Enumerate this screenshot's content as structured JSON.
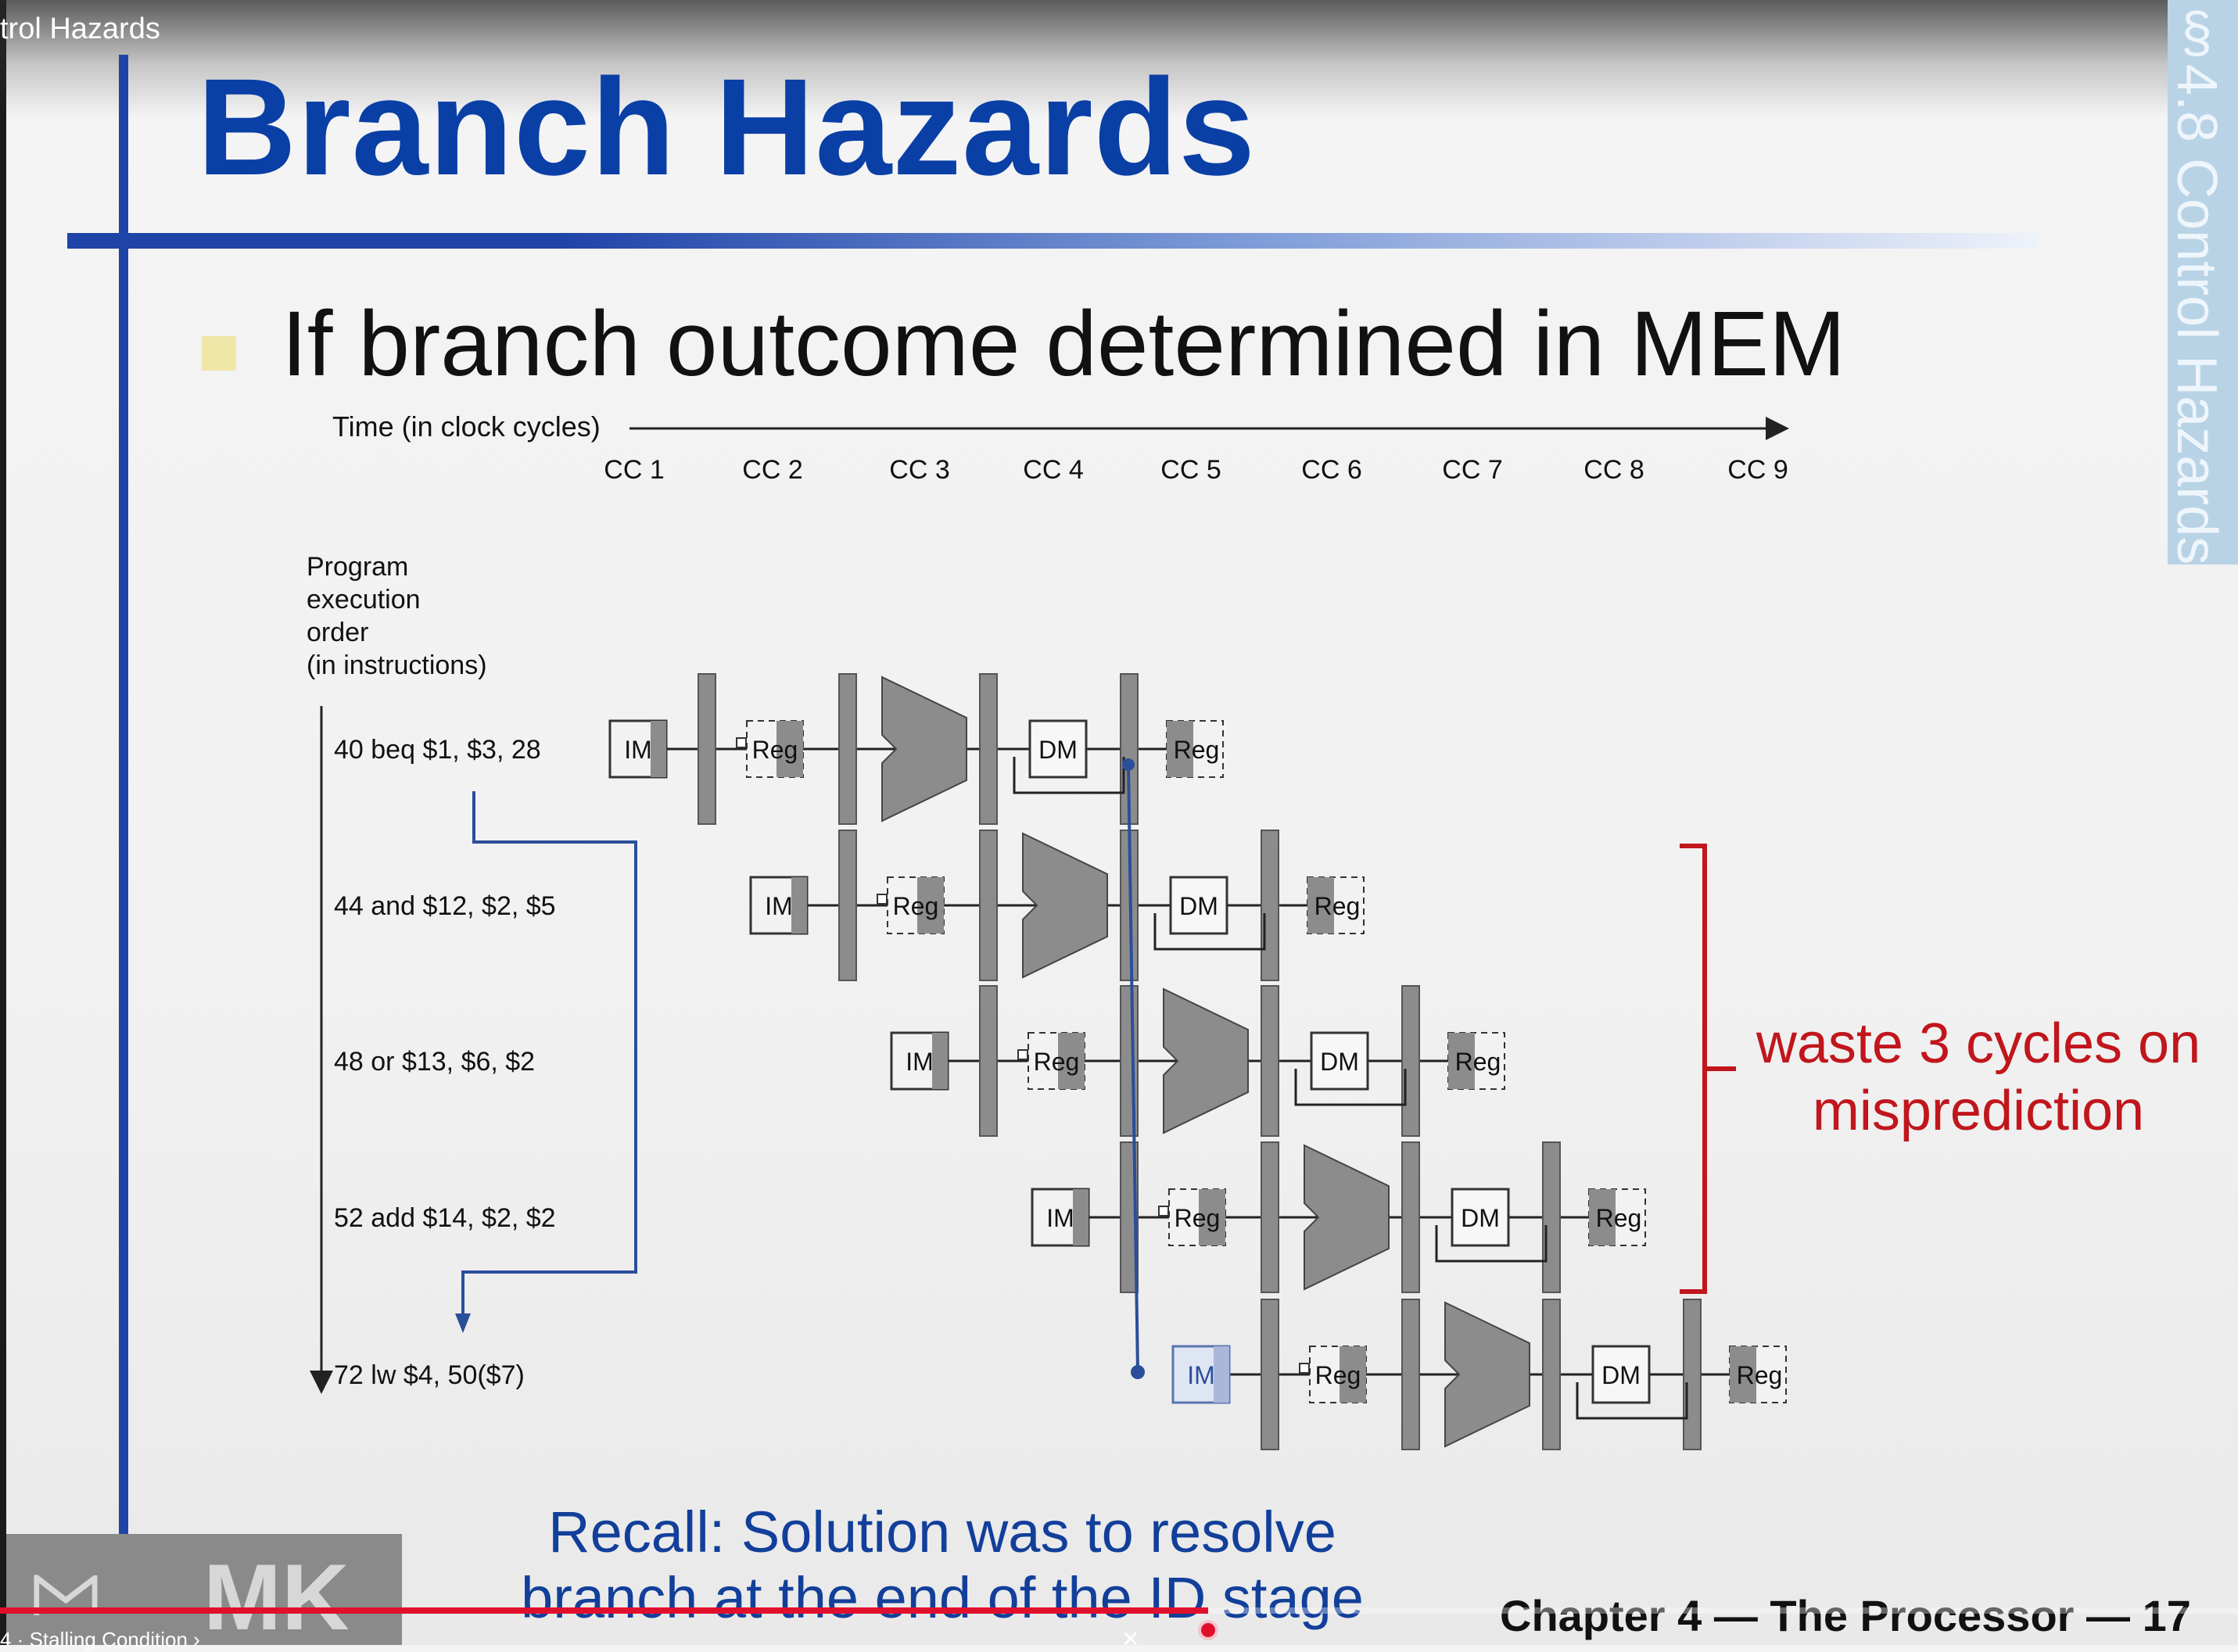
{
  "video": {
    "title": "trol Hazards",
    "chapter_label": "4 · Stalling Condition ›",
    "progress": 0.54
  },
  "slide": {
    "title": "Branch Hazards",
    "bullet": "If branch outcome determined in MEM",
    "side_tab": "§4.8 Control Hazards",
    "time_label": "Time (in clock cycles)",
    "cycles": [
      "CC 1",
      "CC 2",
      "CC 3",
      "CC 4",
      "CC 5",
      "CC 6",
      "CC 7",
      "CC 8",
      "CC 9"
    ],
    "order_label": [
      "Program",
      "execution",
      "order",
      "(in instructions)"
    ],
    "instructions": [
      {
        "text": "40 beq $1, $3, 28",
        "start": 0
      },
      {
        "text": "44 and $12, $2, $5",
        "start": 1
      },
      {
        "text": "48 or $13, $6, $2",
        "start": 2
      },
      {
        "text": "52 add $14, $2, $2",
        "start": 3
      },
      {
        "text": "72 lw $4, 50($7)",
        "start": 4
      }
    ],
    "stages": {
      "im": "IM",
      "reg": "Reg",
      "dm": "DM"
    },
    "callout": [
      "waste 3 cycles on",
      "misprediction"
    ],
    "recall": [
      "Recall: Solution was to resolve",
      "branch at the end of the ID stage"
    ],
    "footer": "Chapter 4 — The Processor — 17",
    "logo": "MK",
    "colors": {
      "title": "#0a3fa6",
      "callout": "#c0161c",
      "recall": "#123f9a",
      "stage": "#8c8c8c"
    }
  }
}
